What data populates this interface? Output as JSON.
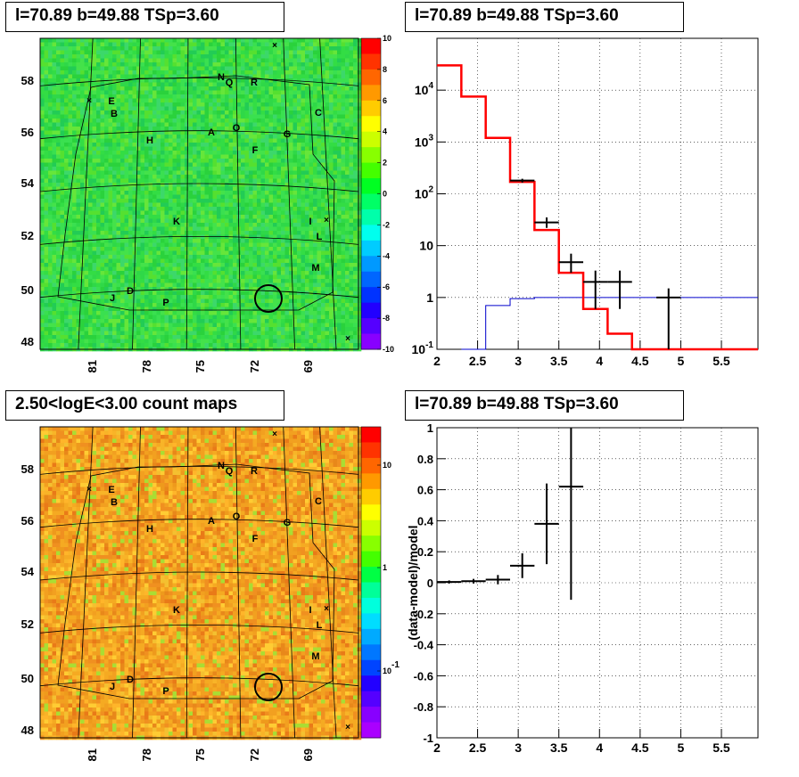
{
  "panels": {
    "map1_title": "l=70.89 b=49.88 TSp=3.60",
    "spec_title": "l=70.89 b=49.88 TSp=3.60",
    "map2_title": "2.50<logE<3.00 count maps",
    "resid_title": "l=70.89 b=49.88 TSp=3.60"
  },
  "colors": {
    "model_red": "#ff0000",
    "background_blue": "#0000cc",
    "data_black": "#000000",
    "map1_bg": "#33dd44",
    "map2_bg": "#f2a020"
  },
  "chart_data": [
    {
      "type": "heatmap",
      "name": "residual significance map",
      "y_ticks": [
        "48",
        "50",
        "52",
        "54",
        "56",
        "58"
      ],
      "x_ticks": [
        "81",
        "78",
        "75",
        "72",
        "69"
      ],
      "colorbar_ticks": [
        "10",
        "8",
        "6",
        "4",
        "2",
        "0",
        "-2",
        "-4",
        "-6",
        "-8",
        "-10"
      ],
      "colorbar_range": [
        -10,
        10
      ],
      "source_labels": [
        "E",
        "B",
        "H",
        "A",
        "O",
        "N",
        "Q",
        "R",
        "C",
        "G",
        "F",
        "K",
        "I",
        "L",
        "M",
        "D",
        "J",
        "P"
      ]
    },
    {
      "type": "line",
      "name": "energy spectrum",
      "xlim": [
        2,
        5.95
      ],
      "ylog": true,
      "ylim": [
        0.1,
        100000
      ],
      "x_ticks": [
        "2",
        "2.5",
        "3",
        "3.5",
        "4",
        "4.5",
        "5",
        "5.5"
      ],
      "y_ticks": [
        "10^-1",
        "1",
        "10",
        "10^2",
        "10^3",
        "10^4"
      ],
      "model_steps": {
        "edges": [
          2,
          2.3,
          2.6,
          2.9,
          3.2,
          3.5,
          3.8,
          4.1,
          4.4,
          5.95
        ],
        "values": [
          30000,
          7500,
          1200,
          170,
          20,
          3,
          0.6,
          0.2,
          0.1
        ]
      },
      "background_steps": {
        "edges": [
          2.3,
          2.6,
          2.9,
          3.2,
          5.95
        ],
        "values": [
          0.1,
          0.7,
          0.95,
          1.0
        ]
      },
      "data_points": [
        {
          "x": 3.05,
          "y": 180,
          "xerr": 0.15,
          "ylo": 165,
          "yhi": 195
        },
        {
          "x": 3.35,
          "y": 28,
          "xerr": 0.15,
          "ylo": 22,
          "yhi": 35
        },
        {
          "x": 3.65,
          "y": 4.8,
          "xerr": 0.15,
          "ylo": 3,
          "yhi": 7
        },
        {
          "x": 3.95,
          "y": 2,
          "xerr": 0.15,
          "ylo": 0.6,
          "yhi": 3.3
        },
        {
          "x": 4.25,
          "y": 2,
          "xerr": 0.15,
          "ylo": 0.6,
          "yhi": 3.3
        },
        {
          "x": 4.85,
          "y": 1,
          "xerr": 0.15,
          "ylo": 0.1,
          "yhi": 1.5
        }
      ]
    },
    {
      "type": "heatmap",
      "name": "count map",
      "y_ticks": [
        "48",
        "50",
        "52",
        "54",
        "56",
        "58"
      ],
      "x_ticks": [
        "81",
        "78",
        "75",
        "72",
        "69"
      ],
      "colorbar_ticks": [
        "10",
        "1",
        "10^-1"
      ],
      "source_labels": [
        "E",
        "B",
        "H",
        "A",
        "O",
        "N",
        "Q",
        "R",
        "C",
        "G",
        "F",
        "K",
        "I",
        "L",
        "M",
        "D",
        "J",
        "P"
      ]
    },
    {
      "type": "scatter",
      "name": "fractional residuals",
      "xlim": [
        2,
        5.95
      ],
      "ylim": [
        -1,
        1
      ],
      "ylabel": "(data-model)/model",
      "x_ticks": [
        "2",
        "2.5",
        "3",
        "3.5",
        "4",
        "4.5",
        "5",
        "5.5"
      ],
      "y_ticks": [
        "1",
        "0.8",
        "0.6",
        "0.4",
        "0.2",
        "0",
        "-0.2",
        "-0.4",
        "-0.6",
        "-0.8",
        "-1"
      ],
      "data_points": [
        {
          "x": 2.15,
          "y": 0.005,
          "xerr": 0.15,
          "yerr": 0.01
        },
        {
          "x": 2.45,
          "y": 0.01,
          "xerr": 0.15,
          "yerr": 0.015
        },
        {
          "x": 2.75,
          "y": 0.02,
          "xerr": 0.15,
          "yerr": 0.03
        },
        {
          "x": 3.05,
          "y": 0.11,
          "xerr": 0.15,
          "yerr": 0.08
        },
        {
          "x": 3.35,
          "y": 0.38,
          "xerr": 0.15,
          "yerr": 0.26
        },
        {
          "x": 3.65,
          "y": 0.62,
          "xerr": 0.15,
          "yerr": 0.73
        }
      ]
    }
  ]
}
